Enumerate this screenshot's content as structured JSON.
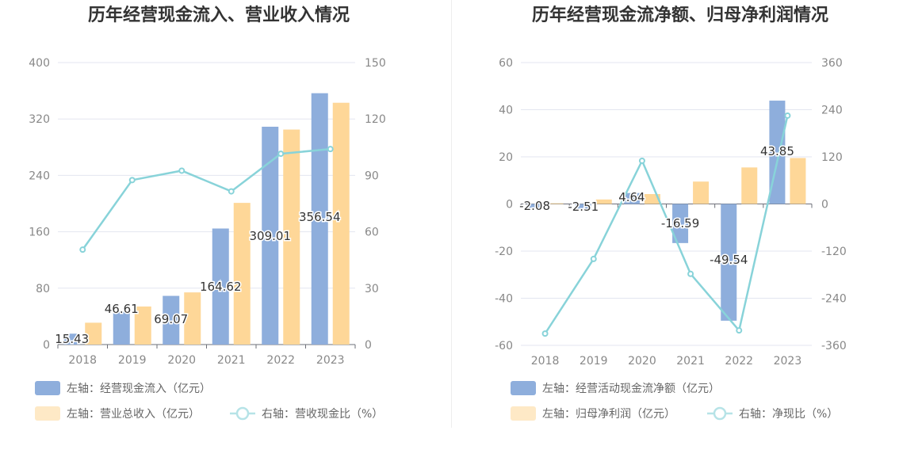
{
  "chart_data": [
    {
      "type": "bar",
      "title": "历年经营现金流入、营业收入情况",
      "categories": [
        "2018",
        "2019",
        "2020",
        "2021",
        "2022",
        "2023"
      ],
      "left_axis": {
        "ylim": [
          0,
          400
        ],
        "ticks": [
          0,
          80,
          160,
          240,
          320,
          400
        ]
      },
      "right_axis": {
        "ylim": [
          0,
          150
        ],
        "ticks": [
          0,
          30,
          60,
          90,
          120,
          150
        ]
      },
      "series": [
        {
          "name": "左轴：经营现金流入（亿元）",
          "type": "bar",
          "axis": "left",
          "color": "#8eaedc",
          "values": [
            15.43,
            46.61,
            69.07,
            164.62,
            309.01,
            356.54
          ],
          "labels": [
            "15.43",
            "46.61",
            "69.07",
            "164.62",
            "309.01",
            "356.54"
          ]
        },
        {
          "name": "左轴：营业总收入（亿元）",
          "type": "bar",
          "axis": "left",
          "color": "#fed798",
          "values": [
            31,
            54,
            74,
            201,
            305,
            343
          ]
        },
        {
          "name": "右轴：营收现金比（%）",
          "type": "line",
          "axis": "right",
          "color": "#88d3d9",
          "values": [
            50.5,
            87.5,
            92.5,
            81.5,
            101.5,
            104
          ]
        }
      ],
      "legend_position": "bottom-left",
      "grid": true
    },
    {
      "type": "bar",
      "title": "历年经营现金流净额、归母净利润情况",
      "categories": [
        "2018",
        "2019",
        "2020",
        "2021",
        "2022",
        "2023"
      ],
      "left_axis": {
        "ylim": [
          -60,
          60
        ],
        "ticks": [
          -60,
          -40,
          -20,
          0,
          20,
          40,
          60
        ]
      },
      "right_axis": {
        "ylim": [
          -360,
          360
        ],
        "ticks": [
          -360,
          -240,
          -120,
          0,
          120,
          240,
          360
        ]
      },
      "series": [
        {
          "name": "左轴：经营活动现金流净额（亿元）",
          "type": "bar",
          "axis": "left",
          "color": "#8eaedc",
          "values": [
            -2.08,
            -2.51,
            4.64,
            -16.59,
            -49.54,
            43.85
          ],
          "labels": [
            "-2.08",
            "-2.51",
            "4.64",
            "-16.59",
            "-49.54",
            "43.85"
          ]
        },
        {
          "name": "左轴：归母净利润（亿元）",
          "type": "bar",
          "axis": "left",
          "color": "#fed798",
          "values": [
            0.3,
            1.9,
            4.2,
            9.5,
            15.5,
            19.5
          ]
        },
        {
          "name": "右轴：净现比（%）",
          "type": "line",
          "axis": "right",
          "color": "#88d3d9",
          "values": [
            -330,
            -140,
            110,
            -178,
            -322,
            225
          ]
        }
      ],
      "legend_position": "bottom-left",
      "grid": true
    }
  ]
}
